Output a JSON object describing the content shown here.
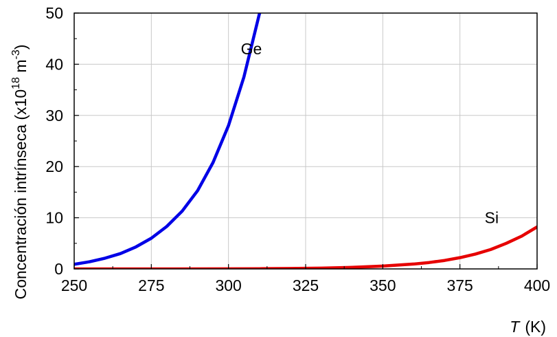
{
  "chart_data": {
    "type": "line",
    "xlabel": "T (K)",
    "xlabel_var": "T",
    "xlabel_unit": "(K)",
    "ylabel": "Concentración intrínseca (x10^18 m^-3)",
    "ylabel_main": "Concentración intrínseca (x10",
    "ylabel_exp1": "18",
    "ylabel_mid": " m",
    "ylabel_exp2": "-3",
    "ylabel_end": ")",
    "xlim": [
      250,
      400
    ],
    "ylim": [
      0,
      50
    ],
    "xticks": [
      "250",
      "275",
      "300",
      "325",
      "350",
      "375",
      "400"
    ],
    "yticks": [
      "0",
      "10",
      "20",
      "30",
      "40",
      "50"
    ],
    "grid": true,
    "series": [
      {
        "name": "Ge",
        "color": "#0000e6",
        "x": [
          250,
          255,
          260,
          265,
          270,
          275,
          280,
          285,
          290,
          295,
          300,
          305,
          310,
          313
        ],
        "y": [
          0.9,
          1.4,
          2.1,
          3.0,
          4.3,
          6.0,
          8.3,
          11.3,
          15.3,
          20.8,
          28.0,
          37.5,
          49.8,
          55.0
        ]
      },
      {
        "name": "Si",
        "color": "#e60000",
        "x": [
          250,
          275,
          300,
          310,
          320,
          330,
          340,
          350,
          360,
          365,
          370,
          375,
          380,
          385,
          390,
          395,
          400
        ],
        "y": [
          0.0,
          0.0,
          0.02,
          0.04,
          0.08,
          0.15,
          0.3,
          0.55,
          0.95,
          1.25,
          1.65,
          2.2,
          2.9,
          3.8,
          5.0,
          6.4,
          8.2
        ]
      }
    ]
  }
}
